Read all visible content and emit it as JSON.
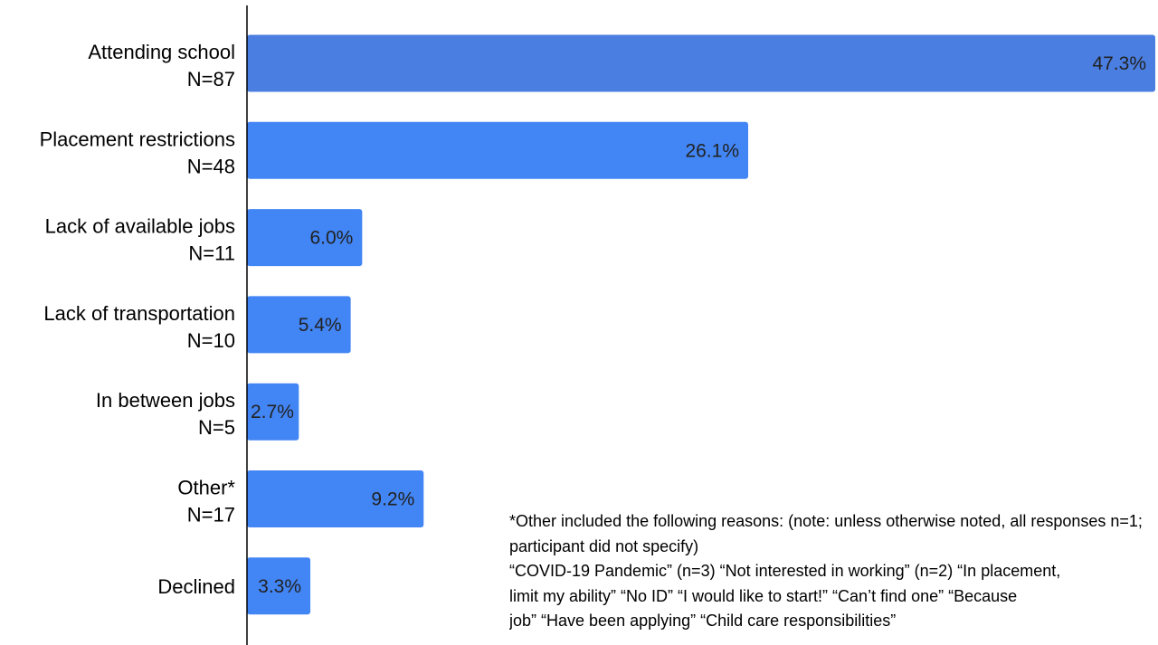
{
  "chart_data": {
    "type": "bar",
    "orientation": "horizontal",
    "categories": [
      {
        "name": "Attending school",
        "n": "N=87"
      },
      {
        "name": "Placement restrictions",
        "n": "N=48"
      },
      {
        "name": "Lack of available jobs",
        "n": "N=11"
      },
      {
        "name": "Lack of transportation",
        "n": "N=10"
      },
      {
        "name": "In between jobs",
        "n": "N=5"
      },
      {
        "name": "Other*",
        "n": "N=17"
      },
      {
        "name": "Declined",
        "n": ""
      }
    ],
    "values": [
      47.3,
      26.1,
      6.0,
      5.4,
      2.7,
      9.2,
      3.3
    ],
    "value_labels": [
      "47.3%",
      "26.1%",
      "6.0%",
      "5.4%",
      "2.7%",
      "9.2%",
      "3.3%"
    ],
    "xlim": [
      0,
      47.3
    ],
    "grid": false,
    "colors": {
      "bar": "#4285f4",
      "bar_top": "#4a7ee0",
      "axis": "#000000"
    }
  },
  "footnote": {
    "lines": [
      "*Other included the following reasons: (note: unless otherwise noted, all responses n=1;",
      "participant did not specify)",
      "“COVID-19 Pandemic” (n=3)   “Not interested in working” (n=2)  “In placement,",
      "limit my ability”   “No ID”          “I would like to start!”   “Can’t find one”   “Because",
      "job”  “Have been applying”       “Child care responsibilities”"
    ]
  }
}
